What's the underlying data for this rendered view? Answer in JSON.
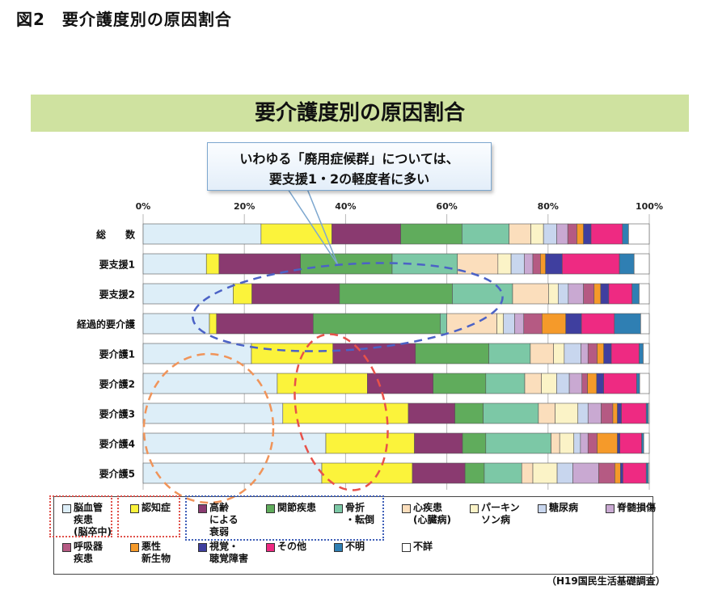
{
  "figure_label": "図2　要介護度別の原因割合",
  "title": "要介護度別の原因割合",
  "callout": {
    "line1": "いわゆる「廃用症候群」については、",
    "line2": "要支援1・2の軽度者に多い"
  },
  "source": "（H19国民生活基礎調査）",
  "chart_data": {
    "type": "bar",
    "orientation": "horizontal",
    "stacked": true,
    "x_ticks": [
      "0%",
      "20%",
      "40%",
      "60%",
      "80%",
      "100%"
    ],
    "xlim": [
      0,
      100
    ],
    "grid": true,
    "legend_position": "bottom",
    "categories": [
      "総　　数",
      "要支援1",
      "要支援2",
      "経過的要介護",
      "要介護1",
      "要介護2",
      "要介護3",
      "要介護4",
      "要介護5"
    ],
    "series": [
      {
        "name": "脳血管疾患(脳卒中)",
        "color": "#ddeef8",
        "values": [
          23.3,
          12.5,
          17.8,
          13.1,
          21.4,
          26.5,
          27.6,
          36.1,
          35.3
        ]
      },
      {
        "name": "認知症",
        "color": "#fbf33b",
        "values": [
          14.0,
          2.5,
          3.7,
          1.4,
          16.1,
          17.8,
          24.8,
          17.5,
          17.9
        ]
      },
      {
        "name": "高齢による衰弱",
        "color": "#8a3a70",
        "values": [
          13.6,
          16.1,
          17.3,
          19.1,
          16.3,
          13.0,
          9.2,
          9.5,
          10.4
        ]
      },
      {
        "name": "関節疾患",
        "color": "#60ac5c",
        "values": [
          12.1,
          18.1,
          22.3,
          25.1,
          14.5,
          10.4,
          5.6,
          4.6,
          3.8
        ]
      },
      {
        "name": "骨折・転倒",
        "color": "#7cc8a6",
        "values": [
          9.3,
          12.9,
          11.9,
          1.3,
          8.2,
          7.7,
          10.9,
          12.9,
          7.4
        ]
      },
      {
        "name": "心疾患(心臓病)",
        "color": "#fbdebc",
        "values": [
          4.3,
          8.0,
          7.1,
          9.9,
          4.6,
          3.3,
          3.3,
          1.7,
          2.2
        ]
      },
      {
        "name": "パーキンソン病",
        "color": "#fbf3c7",
        "values": [
          2.5,
          2.6,
          1.9,
          1.3,
          2.1,
          3.0,
          4.5,
          2.8,
          4.8
        ]
      },
      {
        "name": "糖尿病",
        "color": "#c8d6ee",
        "values": [
          2.6,
          2.6,
          2.0,
          2.2,
          3.3,
          2.5,
          2.0,
          1.3,
          3.1
        ]
      },
      {
        "name": "脊髄損傷",
        "color": "#c9a9d2",
        "values": [
          2.2,
          1.7,
          3.0,
          1.8,
          1.4,
          2.5,
          2.6,
          1.5,
          5.1
        ]
      },
      {
        "name": "呼吸器疾患",
        "color": "#b55a83",
        "values": [
          1.8,
          1.5,
          2.1,
          3.6,
          1.8,
          1.1,
          2.3,
          1.8,
          3.2
        ]
      },
      {
        "name": "悪性新生物",
        "color": "#f59a2a",
        "values": [
          1.3,
          1.0,
          1.3,
          4.7,
          1.3,
          1.8,
          0.9,
          4.0,
          1.1
        ]
      },
      {
        "name": "視覚・聴覚障害",
        "color": "#3f3f9f",
        "values": [
          1.5,
          3.3,
          1.6,
          3.1,
          1.5,
          1.4,
          0.8,
          0.5,
          0.5
        ]
      },
      {
        "name": "その他",
        "color": "#ee2a82",
        "values": [
          6.2,
          11.3,
          4.6,
          6.5,
          5.5,
          6.5,
          4.9,
          4.3,
          4.6
        ]
      },
      {
        "name": "不明",
        "color": "#2f7fb3",
        "values": [
          1.2,
          2.9,
          1.4,
          5.2,
          0.8,
          0.6,
          0.4,
          0.4,
          0.4
        ]
      },
      {
        "name": "不詳",
        "color": "#ffffff",
        "values": [
          4.1,
          3.0,
          2.0,
          1.7,
          1.2,
          1.9,
          0.2,
          1.1,
          0.2
        ]
      }
    ]
  },
  "legend": {
    "items": [
      {
        "lines": [
          "脳血管",
          "疾患",
          "(脳卒中)"
        ]
      },
      {
        "lines": [
          "認知症"
        ]
      },
      {
        "lines": [
          "高齢",
          "による",
          "衰弱"
        ]
      },
      {
        "lines": [
          "関節疾患"
        ]
      },
      {
        "lines": [
          "骨折",
          "・転倒"
        ]
      },
      {
        "lines": [
          "心疾患",
          "(心臓病)"
        ]
      },
      {
        "lines": [
          "パーキン",
          "ソン病"
        ]
      },
      {
        "lines": [
          "糖尿病"
        ]
      },
      {
        "lines": [
          "脊髄損傷"
        ]
      },
      {
        "lines": [
          "呼吸器",
          "疾患"
        ]
      },
      {
        "lines": [
          "悪性",
          "新生物"
        ]
      },
      {
        "lines": [
          "視覚・",
          "聴覚障害"
        ]
      },
      {
        "lines": [
          "その他"
        ]
      },
      {
        "lines": [
          "不明"
        ]
      },
      {
        "lines": [
          "不詳"
        ]
      }
    ]
  }
}
